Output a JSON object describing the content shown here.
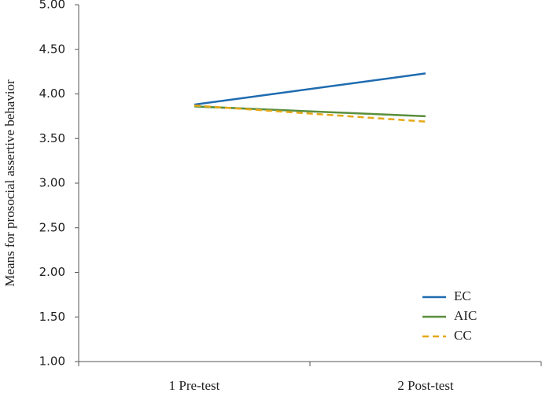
{
  "chart_data": {
    "type": "line",
    "y_label": "Means for prosocial assertive behavior",
    "categories": [
      "1 Pre-test",
      "2 Post-test"
    ],
    "series": [
      {
        "name": "EC",
        "color": "#1f6bb0",
        "values": [
          3.88,
          4.23
        ],
        "line_style": "solid"
      },
      {
        "name": "AIC",
        "color": "#5a8f3c",
        "values": [
          3.86,
          3.75
        ],
        "line_style": "solid"
      },
      {
        "name": "CC",
        "color": "#e6a817",
        "values": [
          3.87,
          3.69
        ],
        "line_style": "dashed"
      }
    ],
    "ylim": [
      1,
      5
    ],
    "yticks": [
      {
        "value": 1,
        "label": "1.00"
      },
      {
        "value": 1.5,
        "label": "1.50"
      },
      {
        "value": 2,
        "label": "2.00"
      },
      {
        "value": 2.5,
        "label": "2.50"
      },
      {
        "value": 3,
        "label": "3.00"
      },
      {
        "value": 3.5,
        "label": "3.50"
      },
      {
        "value": 4,
        "label": "4.00"
      },
      {
        "value": 4.5,
        "label": "4.50"
      },
      {
        "value": 5,
        "label": "5.00"
      }
    ],
    "grid": false,
    "legend": "lower right"
  }
}
